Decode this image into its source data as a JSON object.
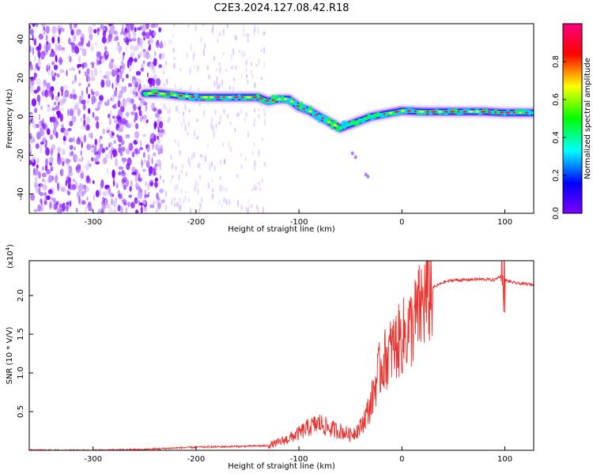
{
  "title": "C2E3.2024.127.08.42.R18",
  "chart_data": [
    {
      "type": "heatmap",
      "xlabel": "Height of straight line (km)",
      "ylabel": "Frequency (Hz)",
      "xlim": [
        -362,
        128
      ],
      "ylim": [
        -50,
        48
      ],
      "xticks": [
        -300,
        -200,
        -100,
        0,
        100
      ],
      "yticks": [
        -40,
        -20,
        0,
        20,
        40
      ],
      "colorbar": {
        "label": "Normalized spectral amplitude",
        "range": [
          0,
          1
        ],
        "ticks": [
          0.0,
          0.2,
          0.4,
          0.6,
          0.8
        ],
        "colormap": "rainbow",
        "colors": [
          "#7d00ff",
          "#0000ff",
          "#00ffff",
          "#00ff00",
          "#ffff00",
          "#ff0000",
          "#ff0080"
        ]
      },
      "noise_region_x": [
        -362,
        -232
      ],
      "ridge": {
        "x": [
          -250,
          -235,
          -220,
          -200,
          -180,
          -160,
          -140,
          -130,
          -120,
          -110,
          -100,
          -90,
          -80,
          -70,
          -60,
          -50,
          -40,
          -30,
          -20,
          -10,
          0,
          20,
          40,
          60,
          80,
          100,
          128
        ],
        "y": [
          12,
          12,
          11,
          10,
          10,
          10,
          10,
          8,
          9,
          9,
          5,
          3,
          0,
          -3,
          -6,
          -4,
          -2,
          0,
          1,
          2,
          3,
          2.5,
          2.5,
          2.5,
          2.5,
          2,
          2
        ]
      },
      "grid": false
    },
    {
      "type": "line",
      "xlabel": "Height of straight line (km)",
      "ylabel": "SNR (10 * V/V)",
      "y_scale_label": "(x10",
      "y_scale_exp": "4",
      "y_scale_close": ")",
      "xlim": [
        -362,
        128
      ],
      "ylim": [
        0,
        2.45
      ],
      "xticks": [
        -300,
        -200,
        -100,
        0,
        100
      ],
      "yticks": [
        0.5,
        1.0,
        1.5,
        2.0
      ],
      "ytick_labels": [
        "0.5",
        "1.0",
        "1.5",
        "2.0"
      ],
      "color": "#e8322e",
      "series": [
        {
          "x": [
            -362,
            -300,
            -250,
            -220,
            -200,
            -160,
            -130,
            -120,
            -110,
            -100,
            -90,
            -80,
            -70,
            -60,
            -50,
            -40,
            -30,
            -25,
            -20,
            -10,
            0,
            10,
            20,
            30,
            40,
            50,
            60,
            70,
            80,
            90,
            95,
            100,
            110,
            128
          ],
          "values": [
            0.0,
            0.0,
            0.01,
            0.03,
            0.04,
            0.05,
            0.06,
            0.1,
            0.15,
            0.22,
            0.3,
            0.35,
            0.28,
            0.25,
            0.2,
            0.3,
            0.6,
            0.9,
            1.1,
            1.3,
            1.45,
            1.6,
            1.9,
            2.1,
            2.17,
            2.2,
            2.2,
            2.21,
            2.21,
            2.2,
            2.25,
            2.2,
            2.16,
            2.14
          ]
        }
      ],
      "grid": false
    }
  ]
}
